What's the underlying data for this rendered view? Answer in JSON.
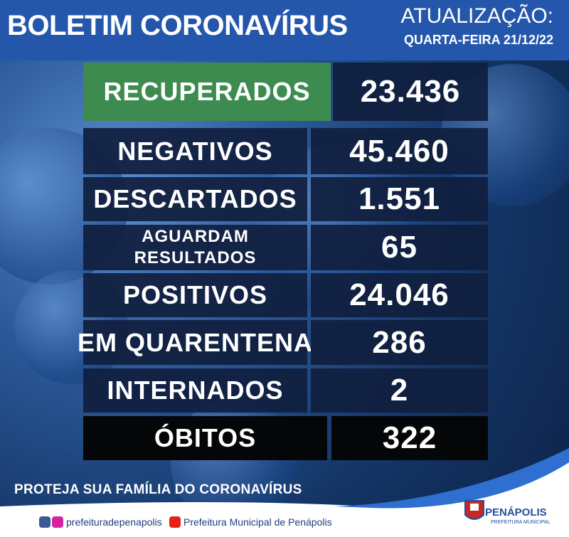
{
  "header": {
    "title": "BOLETIM CORONAVÍRUS",
    "update_label": "ATUALIZAÇÃO:",
    "date": "QUARTA-FEIRA 21/12/22"
  },
  "rows": [
    {
      "label": [
        "RECUPERADOS"
      ],
      "value": "23.436"
    },
    {
      "label": [
        "NEGATIVOS"
      ],
      "value": "45.460"
    },
    {
      "label": [
        "DESCARTADOS"
      ],
      "value": "1.551"
    },
    {
      "label": [
        "AGUARDAM",
        "RESULTADOS"
      ],
      "value": "65"
    },
    {
      "label": [
        "POSITIVOS"
      ],
      "value": "24.046"
    },
    {
      "label": [
        "EM QUARENTENA"
      ],
      "value": "286"
    },
    {
      "label": [
        "INTERNADOS"
      ],
      "value": "2"
    },
    {
      "label": [
        "ÓBITOS"
      ],
      "value": "322"
    }
  ],
  "footer": {
    "slogan": "PROTEJA SUA FAMÍLIA DO CORONAVÍRUS",
    "social": "prefeituradepenapolis",
    "youtube": "Prefeitura Municipal de Penápolis",
    "logo_name": "PENÁPOLIS",
    "logo_subtitle": "PREFEITURA MUNICIPAL"
  }
}
